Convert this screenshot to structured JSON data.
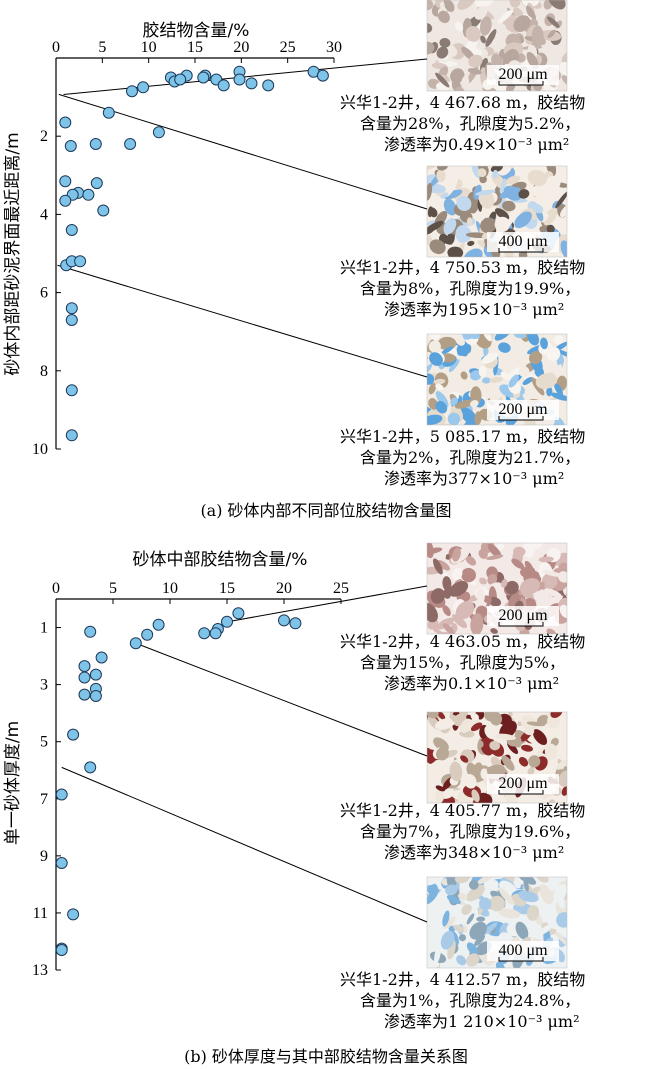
{
  "chart_data": [
    {
      "type": "scatter",
      "panel": "a",
      "caption": "(a) 砂体内部不同部位胶结物含量图",
      "xlabel": "胶结物含量/%",
      "ylabel": "砂体内部距砂泥界面最近距离/m",
      "xlim": [
        0,
        30
      ],
      "ylim": [
        0,
        10
      ],
      "xticks": [
        "0",
        "5",
        "10",
        "15",
        "20",
        "25",
        "30"
      ],
      "yticks": [
        "2",
        "4",
        "6",
        "8",
        "10"
      ],
      "x": [
        27.8,
        28.8,
        19.8,
        16.1,
        14.1,
        12.4,
        12.8,
        15.9,
        17.3,
        19.8,
        21.1,
        13.4,
        18.1,
        22.9,
        9.4,
        8.2,
        5.7,
        1.0,
        11.1,
        8.0,
        1.6,
        4.3,
        1.0,
        4.4,
        2.4,
        1.8,
        3.5,
        1.0,
        5.1,
        1.7,
        1.1,
        1.7,
        2.6,
        1.7,
        1.7,
        1.7,
        1.7
      ],
      "y": [
        0.35,
        0.45,
        0.35,
        0.45,
        0.45,
        0.5,
        0.6,
        0.5,
        0.55,
        0.55,
        0.65,
        0.55,
        0.7,
        0.7,
        0.75,
        0.85,
        1.4,
        1.65,
        1.9,
        2.2,
        2.25,
        2.2,
        3.15,
        3.2,
        3.45,
        3.5,
        3.5,
        3.65,
        3.9,
        4.4,
        5.3,
        5.2,
        5.2,
        6.4,
        6.7,
        8.5,
        9.65
      ],
      "annotations": [
        {
          "scale": "200 μm",
          "text": [
            "兴华1-2井，4 467.68 m，胶结物",
            "含量为28%，孔隙度为5.2%，",
            "渗透率为0.49×10⁻³ μm²"
          ]
        },
        {
          "scale": "400 μm",
          "text": [
            "兴华1-2井，4 750.53 m，胶结物",
            "含量为8%，孔隙度为19.9%，",
            "渗透率为195×10⁻³ μm²"
          ]
        },
        {
          "scale": "200 μm",
          "text": [
            "兴华1-2井，5 085.17 m，胶结物",
            "含量为2%，孔隙度为21.7%，",
            "渗透率为377×10⁻³ μm²"
          ]
        }
      ],
      "marker_color": "#7ec3e8"
    },
    {
      "type": "scatter",
      "panel": "b",
      "caption": "(b) 砂体厚度与其中部胶结物含量关系图",
      "xlabel": "砂体中部胶结物含量/%",
      "ylabel": "单一砂体厚度/m",
      "xlim": [
        0,
        25
      ],
      "ylim": [
        0,
        13
      ],
      "xticks": [
        "0",
        "5",
        "10",
        "15",
        "20",
        "25"
      ],
      "yticks": [
        "1",
        "3",
        "5",
        "7",
        "9",
        "11",
        "13"
      ],
      "x": [
        16.0,
        15.0,
        20.0,
        21.0,
        9.0,
        14.2,
        14.0,
        13.0,
        3.0,
        8.0,
        7.0,
        4.0,
        2.5,
        2.5,
        3.5,
        3.5,
        2.5,
        3.5,
        1.5,
        3.0,
        0.5,
        0.5,
        1.5,
        0.5,
        0.5
      ],
      "y": [
        0.5,
        0.8,
        0.75,
        0.85,
        0.9,
        1.05,
        1.2,
        1.2,
        1.15,
        1.25,
        1.55,
        2.05,
        2.35,
        2.75,
        2.65,
        3.15,
        3.35,
        3.4,
        4.75,
        5.9,
        6.85,
        9.25,
        11.05,
        12.25,
        12.3
      ],
      "annotations": [
        {
          "scale": "200 μm",
          "text": [
            "兴华1-2井，4 463.05 m，胶结物",
            "含量为15%，孔隙度为5%，",
            "渗透率为0.1×10⁻³ μm²"
          ]
        },
        {
          "scale": "200 μm",
          "text": [
            "兴华1-2井，4 405.77 m，胶结物",
            "含量为7%，孔隙度为19.6%，",
            "渗透率为348×10⁻³ μm²"
          ]
        },
        {
          "scale": "400 μm",
          "text": [
            "兴华1-2井，4 412.57 m，胶结物",
            "含量为1%，孔隙度为24.8%，",
            "渗透率为1 210×10⁻³ μm²"
          ]
        }
      ],
      "marker_color": "#7ec3e8"
    }
  ]
}
